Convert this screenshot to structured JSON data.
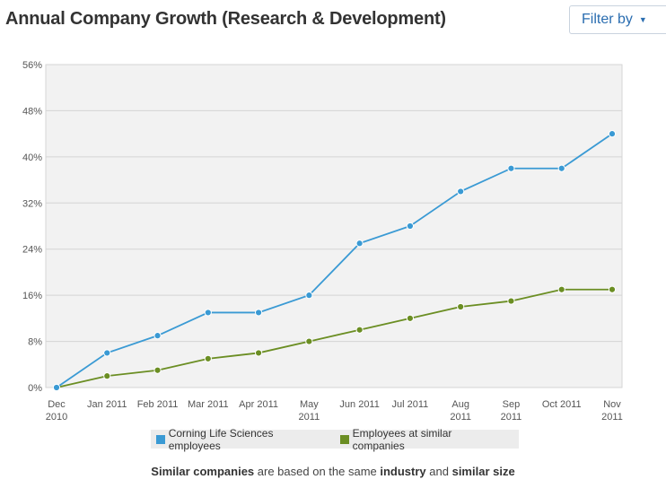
{
  "header": {
    "title": "Annual Company Growth (Research & Development)",
    "filter_label": "Filter by"
  },
  "chart_data": {
    "type": "line",
    "title": "Annual Company Growth (Research & Development)",
    "xlabel": "",
    "ylabel": "",
    "categories": [
      [
        "Dec",
        "2010"
      ],
      [
        "Jan 2011"
      ],
      [
        "Feb 2011"
      ],
      [
        "Mar 2011"
      ],
      [
        "Apr 2011"
      ],
      [
        "May",
        "2011"
      ],
      [
        "Jun 2011"
      ],
      [
        "Jul 2011"
      ],
      [
        "Aug",
        "2011"
      ],
      [
        "Sep",
        "2011"
      ],
      [
        "Oct 2011"
      ],
      [
        "Nov",
        "2011"
      ]
    ],
    "y_ticks": [
      "0%",
      "8%",
      "16%",
      "24%",
      "32%",
      "40%",
      "48%",
      "56%"
    ],
    "ylim": [
      0,
      56
    ],
    "grid": true,
    "legend_position": "bottom",
    "series": [
      {
        "name": "Corning Life Sciences employees",
        "color": "#3a9ad4",
        "values": [
          0,
          6,
          9,
          13,
          13,
          16,
          25,
          28,
          34,
          38,
          38,
          44
        ]
      },
      {
        "name": "Employees at similar companies",
        "color": "#6b8e23",
        "values": [
          0,
          2,
          3,
          5,
          6,
          8,
          10,
          12,
          14,
          15,
          17,
          17
        ]
      }
    ]
  },
  "footnote": {
    "b1": "Similar companies",
    "t1": " are based on the same ",
    "b2": "industry",
    "t2": " and ",
    "b3": "similar size"
  }
}
